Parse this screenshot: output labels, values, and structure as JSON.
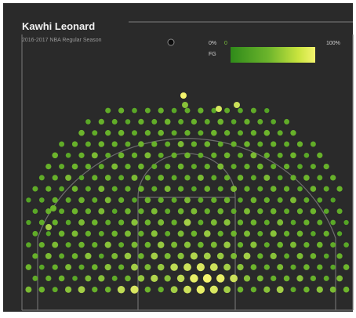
{
  "header": {
    "player_name": "Kawhi Leonard",
    "season": "2016-2017 NBA Regular Season"
  },
  "legend": {
    "min_label": "0%",
    "min_value": "0",
    "max_label": "100%",
    "measure_label": "FG",
    "colors": {
      "low": "#2f8a1a",
      "mid": "#6db52c",
      "high": "#f4f46e",
      "empty": "#0c0c0c"
    }
  },
  "chart_data": {
    "type": "scatter",
    "description_units": "hex-binned shot locations; x in feet from basket center (left negative), y in feet from baseline",
    "x_range": [
      -25,
      25
    ],
    "y_range": [
      0,
      35
    ],
    "rows": [
      {
        "y": 2,
        "pct": [
          0.55,
          0.5,
          0.4,
          0.6,
          0.7,
          0.45,
          0.5,
          0.8,
          0.9,
          0.5,
          0.45,
          0.7,
          0.85,
          0.95,
          0.9,
          0.7,
          0.5,
          0.45,
          0.6,
          0.7,
          0.4,
          0.5,
          0.6,
          0.55,
          0.5
        ]
      },
      {
        "y": 4,
        "pct": [
          0.4,
          0.45,
          0.5,
          0.35,
          0.55,
          0.6,
          0.4,
          0.5,
          0.65,
          0.75,
          0.6,
          0.8,
          0.95,
          1.0,
          0.95,
          0.85,
          0.6,
          0.55,
          0.45,
          0.5,
          0.6,
          0.45,
          0.4,
          0.55,
          0.45
        ]
      },
      {
        "y": 6,
        "pct": [
          0.5,
          0.35,
          0.45,
          0.55,
          0.4,
          0.5,
          0.6,
          0.45,
          0.7,
          0.55,
          0.65,
          0.8,
          0.85,
          0.9,
          0.85,
          0.7,
          0.6,
          0.5,
          0.45,
          0.55,
          0.4,
          0.5,
          0.45,
          0.35,
          0.5
        ]
      },
      {
        "y": 8,
        "pct": [
          0.45,
          0.55,
          0.4,
          0.5,
          0.6,
          0.35,
          0.55,
          0.65,
          0.5,
          0.7,
          0.55,
          0.6,
          0.75,
          0.7,
          0.65,
          0.55,
          0.7,
          0.45,
          0.6,
          0.4,
          0.55,
          0.5,
          0.35,
          0.45,
          0.4
        ]
      },
      {
        "y": 10,
        "pct": [
          0.35,
          0.45,
          0.55,
          0.4,
          0.5,
          0.45,
          0.6,
          0.4,
          0.55,
          0.5,
          0.65,
          0.55,
          0.6,
          0.5,
          0.55,
          0.65,
          0.45,
          0.6,
          0.4,
          0.5,
          0.55,
          0.45,
          0.5,
          0.4,
          0.35
        ]
      },
      {
        "y": 12,
        "pct": [
          0.4,
          0.3,
          0.5,
          0.55,
          0.45,
          0.4,
          0.5,
          0.55,
          0.45,
          0.6,
          0.4,
          0.55,
          0.5,
          0.65,
          0.45,
          0.5,
          0.55,
          0.4,
          0.6,
          0.45,
          0.5,
          0.35,
          0.45,
          0.3,
          0.4
        ]
      },
      {
        "y": 14,
        "pct": [
          0.3,
          0.4,
          0.45,
          0.35,
          0.55,
          0.5,
          0.4,
          0.45,
          0.6,
          0.5,
          0.55,
          0.45,
          0.7,
          0.4,
          0.55,
          0.6,
          0.45,
          0.5,
          0.4,
          0.55,
          0.35,
          0.45,
          0.4,
          0.35,
          0.3
        ]
      },
      {
        "y": 16,
        "pct": [
          0.35,
          0.45,
          0.4,
          0.5,
          0.45,
          0.55,
          0.35,
          0.5,
          0.45,
          0.55,
          0.4,
          0.5,
          0.55,
          0.45,
          0.5,
          0.4,
          0.55,
          0.45,
          0.5,
          0.4,
          0.45,
          0.5,
          0.35,
          0.4,
          0.3
        ]
      },
      {
        "y": 18,
        "pct": [
          0.3,
          0.35,
          0.45,
          0.4,
          0.5,
          0.4,
          0.55,
          0.45,
          0.35,
          0.5,
          0.45,
          0.4,
          0.55,
          0.4,
          0.45,
          0.5,
          0.35,
          0.5,
          0.45,
          0.4,
          0.55,
          0.4,
          0.35,
          0.3,
          0.35
        ]
      },
      {
        "y": 20,
        "pct": [
          0.4,
          0.45,
          0.35,
          0.5,
          0.4,
          0.55,
          0.4,
          0.45,
          0.5,
          0.4,
          0.55,
          0.45,
          0.35,
          0.5,
          0.4,
          0.55,
          0.45,
          0.4,
          0.5,
          0.45,
          0.35,
          0.5,
          0.4,
          0.45,
          0.35
        ]
      },
      {
        "y": 22,
        "pct": [
          0.5,
          0.4,
          0.45,
          0.55,
          0.35,
          0.45,
          0.5,
          0.4,
          0.55,
          0.45,
          0.5,
          0.4,
          0.45,
          0.55,
          0.4,
          0.45,
          0.5,
          0.4,
          0.55,
          0.35,
          0.45,
          0.5,
          0.4,
          0.45,
          0.5
        ]
      },
      {
        "y": 24,
        "pct": [
          0.35,
          0.45,
          0.4,
          0.5,
          0.45,
          0.4,
          0.55,
          0.45,
          0.5,
          0.4,
          0.45,
          0.5,
          0.4,
          0.45,
          0.55,
          0.4,
          0.45,
          0.5,
          0.4,
          0.45,
          0.35,
          0.4,
          0.45,
          0.35,
          0.4
        ]
      },
      {
        "y": 26,
        "pct": [
          0.45,
          0.4,
          0.5,
          0.35,
          0.45,
          0.55,
          0.4,
          0.5,
          0.45,
          0.55,
          0.4,
          0.45,
          0.5,
          0.4,
          0.45,
          0.5,
          0.4,
          0.55,
          0.45,
          0.4,
          0.5,
          0.35,
          0.45,
          0.4,
          0.45
        ]
      },
      {
        "y": 28,
        "pct": [
          0.3,
          0.35,
          0.4,
          0.45,
          0.4,
          0.5,
          0.45,
          0.4,
          0.5,
          0.45,
          0.4,
          0.55,
          0.45,
          0.5,
          0.4,
          0.45,
          0.5,
          0.4,
          0.45,
          0.4,
          0.45,
          0.4,
          0.35,
          0.3,
          0.35
        ]
      },
      {
        "y": 30,
        "pct": [
          0.35,
          0.4,
          0.45,
          0.35,
          0.5,
          0.4,
          0.45,
          0.5,
          0.4,
          0.45,
          0.5,
          0.4,
          0.45,
          0.4,
          0.5,
          0.45,
          0.4,
          0.45,
          0.5,
          0.4,
          0.45,
          0.35,
          0.4,
          0.35,
          0.4
        ]
      },
      {
        "y": 32,
        "pct": [
          0.3,
          0.35,
          0.3,
          0.4,
          0.35,
          0.45,
          0.4,
          0.35,
          0.45,
          0.4,
          0.5,
          0.4,
          0.45,
          0.4,
          0.5,
          0.35,
          0.45,
          0.4,
          0.35,
          0.4,
          0.35,
          0.3,
          0.35,
          0.3,
          0.3
        ]
      },
      {
        "y": 34,
        "pct": [
          0.25,
          0.3,
          0.35,
          0.3,
          0.4,
          0.35,
          0.4,
          0.45,
          0.35,
          0.4,
          0.45,
          0.35,
          0.4,
          0.45,
          0.35,
          0.4,
          0.35,
          0.4,
          0.3,
          0.35,
          0.3,
          0.25,
          0.3,
          0.25,
          0.25
        ]
      }
    ]
  }
}
